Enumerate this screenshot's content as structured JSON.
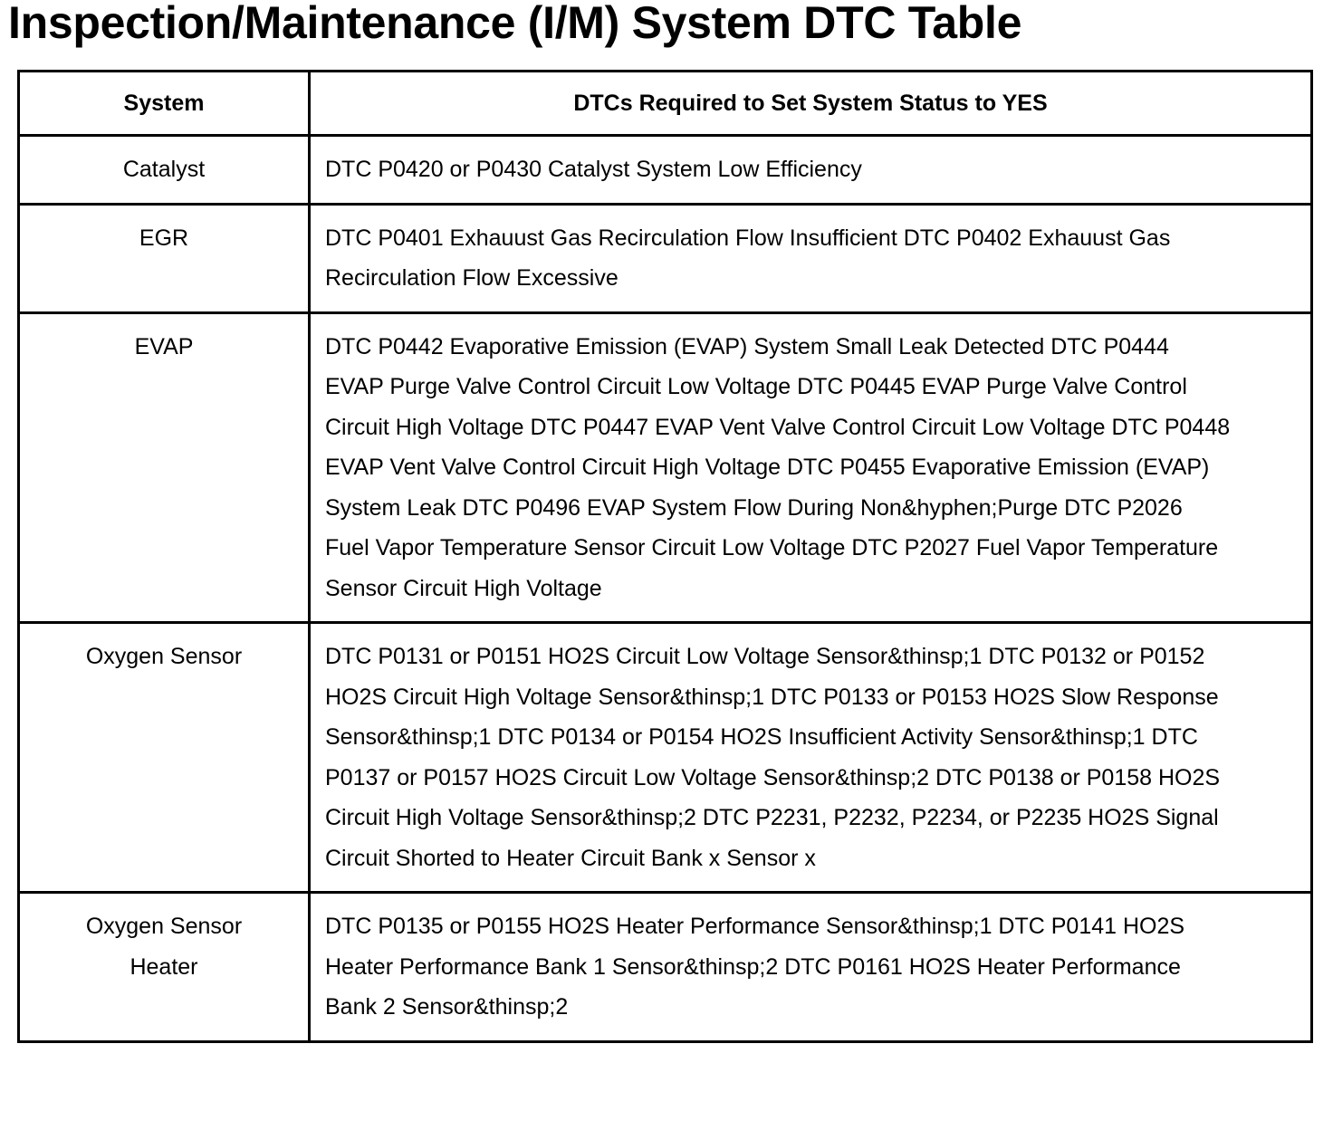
{
  "title": "Inspection/Maintenance (I/M) System DTC Table",
  "table": {
    "headers": [
      "System",
      "DTCs Required to Set System Status to YES"
    ],
    "rows": [
      {
        "system": "Catalyst",
        "dtcs": "DTC P0420 or P0430 Catalyst System Low Efficiency"
      },
      {
        "system": "EGR",
        "dtcs": "DTC P0401 Exhauust Gas Recirculation Flow Insufficient DTC P0402 Exhauust Gas Recirculation Flow Excessive"
      },
      {
        "system": "EVAP",
        "dtcs": "DTC P0442 Evaporative Emission (EVAP) System Small Leak Detected DTC P0444 EVAP Purge Valve Control Circuit Low Voltage DTC P0445 EVAP Purge Valve Control Circuit High Voltage DTC P0447 EVAP Vent Valve Control Circuit Low Voltage DTC P0448 EVAP Vent Valve Control Circuit High Voltage DTC P0455 Evaporative Emission (EVAP) System Leak DTC P0496 EVAP System Flow During Non&hyphen;Purge DTC P2026 Fuel Vapor Temperature Sensor Circuit Low Voltage DTC P2027 Fuel Vapor Temperature Sensor Circuit High Voltage"
      },
      {
        "system": "Oxygen Sensor",
        "dtcs": "DTC P0131 or P0151 HO2S Circuit Low Voltage Sensor&thinsp;1 DTC P0132 or P0152 HO2S Circuit High Voltage Sensor&thinsp;1 DTC P0133 or P0153 HO2S Slow Response Sensor&thinsp;1 DTC P0134 or P0154 HO2S Insufficient Activity Sensor&thinsp;1 DTC P0137 or P0157 HO2S Circuit Low Voltage Sensor&thinsp;2 DTC P0138 or P0158 HO2S Circuit High Voltage Sensor&thinsp;2 DTC P2231, P2232, P2234, or P2235 HO2S Signal Circuit Shorted to Heater Circuit Bank x Sensor x"
      },
      {
        "system": "Oxygen Sensor Heater",
        "dtcs": "DTC P0135 or P0155 HO2S Heater Performance Sensor&thinsp;1 DTC P0141 HO2S Heater Performance Bank 1 Sensor&thinsp;2 DTC P0161 HO2S Heater Performance Bank 2 Sensor&thinsp;2"
      }
    ]
  }
}
